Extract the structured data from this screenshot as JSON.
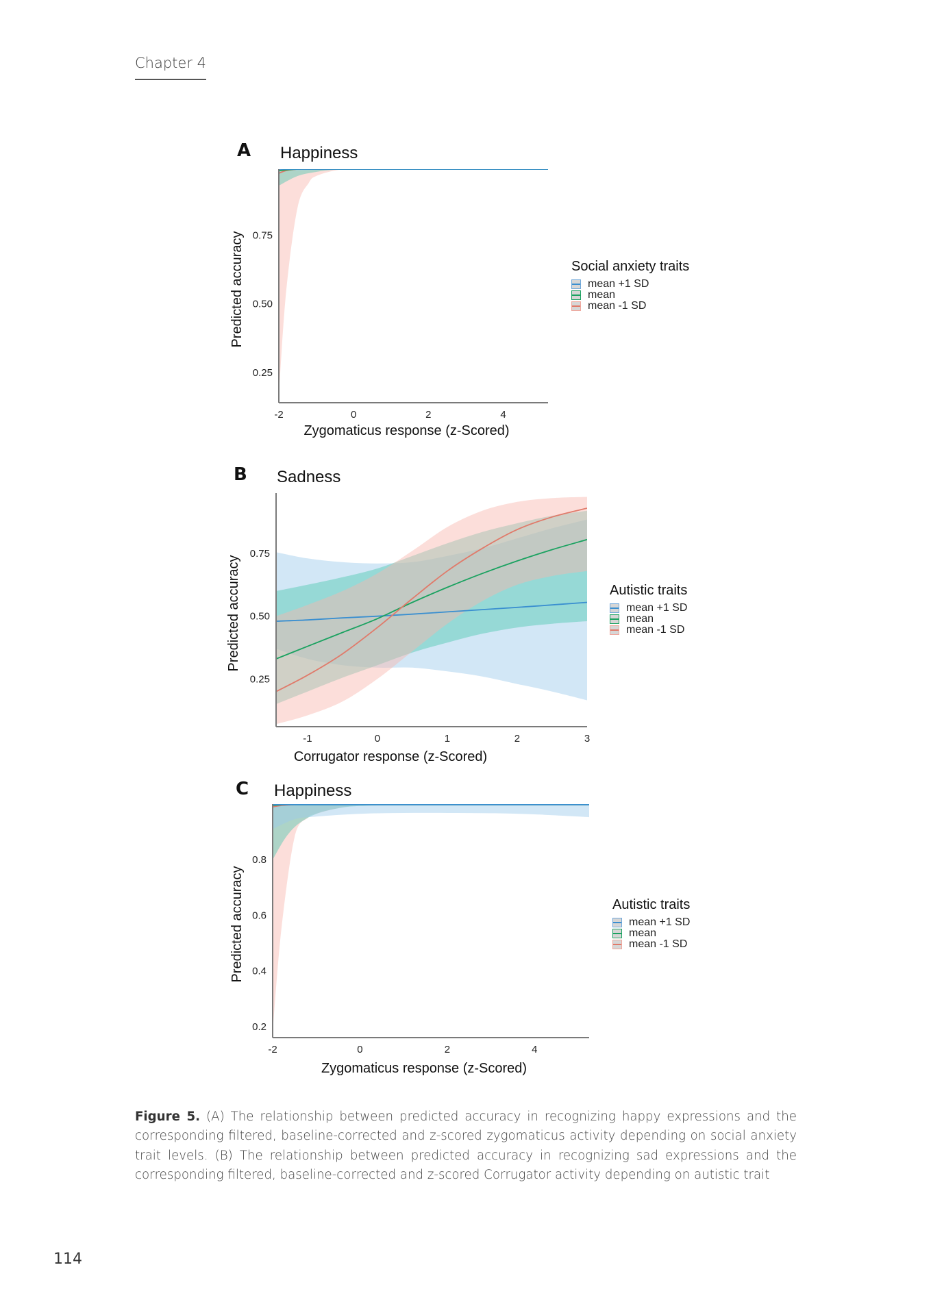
{
  "header": {
    "chapter": "Chapter 4"
  },
  "page_number": "114",
  "caption": {
    "label": "Figure 5.",
    "text": " (A) The relationship between predicted accuracy in recognizing happy expressions and the corresponding filtered, baseline-corrected and z-scored zygomaticus activity depending on social anxiety trait levels. (B) The relationship between predicted accuracy in recognizing sad expressions and the corresponding filtered, baseline-corrected and z-scored Corrugator activity depending on autistic trait"
  },
  "colors": {
    "plus1sd": "#3a8fd0",
    "mean": "#1aa260",
    "minus1sd": "#e07a6a",
    "band_plus1sd": "#9cc9ec",
    "band_mean": "#4ec7b0",
    "band_minus1sd": "#f8b5ad",
    "axis": "#7a7a7a"
  },
  "chart_data": [
    {
      "panel": "A",
      "type": "line",
      "title": "Happiness",
      "xlabel": "Zygomaticus response (z-Scored)",
      "ylabel": "Predicted accuracy",
      "xlim": [
        -2,
        5.2
      ],
      "ylim": [
        0.14,
        0.99
      ],
      "xticks": [
        -2,
        0,
        2,
        4
      ],
      "xtick_labels": [
        "-2",
        "0",
        "2",
        "4"
      ],
      "yticks": [
        0.25,
        0.5,
        0.75
      ],
      "ytick_labels": [
        "0.25",
        "0.50",
        "0.75"
      ],
      "legend": {
        "title": "Social anxiety traits",
        "entries": [
          "mean +1 SD",
          "mean",
          "mean -1 SD"
        ],
        "placement": "right"
      },
      "series": [
        {
          "name": "mean -1 SD",
          "key": "minus1sd",
          "x": [
            -2,
            -1.8,
            -1.5,
            -1.2,
            -1,
            -0.5,
            0,
            1,
            2,
            3,
            4,
            5.2
          ],
          "y": [
            0.975,
            0.985,
            0.99,
            0.99,
            0.99,
            0.99,
            0.99,
            0.99,
            0.99,
            0.99,
            0.99,
            0.99
          ],
          "lower": [
            0.17,
            0.55,
            0.85,
            0.94,
            0.965,
            0.985,
            0.99,
            0.99,
            0.99,
            0.99,
            0.99,
            0.99
          ],
          "upper": [
            0.99,
            0.99,
            0.99,
            0.99,
            0.99,
            0.99,
            0.99,
            0.99,
            0.99,
            0.99,
            0.99,
            0.99
          ]
        },
        {
          "name": "mean",
          "key": "mean",
          "x": [
            -2,
            -1.5,
            -1,
            -0.5,
            0,
            1,
            2,
            3,
            4,
            5.2
          ],
          "y": [
            0.985,
            0.99,
            0.99,
            0.99,
            0.99,
            0.99,
            0.99,
            0.99,
            0.99,
            0.99
          ],
          "lower": [
            0.93,
            0.965,
            0.98,
            0.988,
            0.99,
            0.99,
            0.99,
            0.99,
            0.99,
            0.99
          ],
          "upper": [
            0.99,
            0.99,
            0.99,
            0.99,
            0.99,
            0.99,
            0.99,
            0.99,
            0.99,
            0.99
          ]
        },
        {
          "name": "mean +1 SD",
          "key": "plus1sd",
          "x": [
            -2,
            0,
            2,
            4,
            5.2
          ],
          "y": [
            0.99,
            0.99,
            0.99,
            0.99,
            0.99
          ],
          "lower": [
            0.985,
            0.988,
            0.988,
            0.988,
            0.988
          ],
          "upper": [
            0.99,
            0.99,
            0.99,
            0.99,
            0.99
          ]
        }
      ]
    },
    {
      "panel": "B",
      "type": "line",
      "title": "Sadness",
      "xlabel": "Corrugator response (z-Scored)",
      "ylabel": "Predicted accuracy",
      "xlim": [
        -1.45,
        3
      ],
      "ylim": [
        0.06,
        0.99
      ],
      "xticks": [
        -1,
        0,
        1,
        2,
        3
      ],
      "xtick_labels": [
        "-1",
        "0",
        "1",
        "2",
        "3"
      ],
      "yticks": [
        0.25,
        0.5,
        0.75
      ],
      "ytick_labels": [
        "0.25",
        "0.50",
        "0.75"
      ],
      "legend": {
        "title": "Autistic traits",
        "entries": [
          "mean +1 SD",
          "mean",
          "mean -1 SD"
        ],
        "placement": "right"
      },
      "series": [
        {
          "name": "mean +1 SD",
          "key": "plus1sd",
          "x": [
            -1.45,
            -1,
            -0.5,
            0,
            0.5,
            1,
            1.5,
            2,
            2.5,
            3
          ],
          "y": [
            0.48,
            0.485,
            0.493,
            0.5,
            0.508,
            0.517,
            0.526,
            0.535,
            0.545,
            0.555
          ],
          "lower": [
            0.37,
            0.33,
            0.305,
            0.295,
            0.295,
            0.28,
            0.26,
            0.23,
            0.2,
            0.165
          ],
          "upper": [
            0.755,
            0.73,
            0.715,
            0.71,
            0.715,
            0.74,
            0.77,
            0.81,
            0.85,
            0.885
          ]
        },
        {
          "name": "mean",
          "key": "mean",
          "x": [
            -1.45,
            -1,
            -0.5,
            0,
            0.5,
            1,
            1.5,
            2,
            2.5,
            3
          ],
          "y": [
            0.33,
            0.38,
            0.435,
            0.49,
            0.555,
            0.615,
            0.67,
            0.72,
            0.765,
            0.805
          ],
          "lower": [
            0.15,
            0.2,
            0.255,
            0.305,
            0.355,
            0.395,
            0.43,
            0.455,
            0.47,
            0.48
          ],
          "upper": [
            0.6,
            0.625,
            0.655,
            0.69,
            0.74,
            0.79,
            0.835,
            0.87,
            0.9,
            0.92
          ]
        },
        {
          "name": "mean -1 SD",
          "key": "minus1sd",
          "x": [
            -1.45,
            -1,
            -0.5,
            0,
            0.5,
            1,
            1.5,
            2,
            2.5,
            3
          ],
          "y": [
            0.2,
            0.265,
            0.35,
            0.455,
            0.57,
            0.68,
            0.77,
            0.845,
            0.895,
            0.93
          ],
          "lower": [
            0.07,
            0.105,
            0.16,
            0.25,
            0.36,
            0.47,
            0.56,
            0.625,
            0.66,
            0.68
          ],
          "upper": [
            0.5,
            0.545,
            0.6,
            0.67,
            0.76,
            0.855,
            0.92,
            0.955,
            0.97,
            0.975
          ]
        }
      ]
    },
    {
      "panel": "C",
      "type": "line",
      "title": "Happiness",
      "xlabel": "Zygomaticus response (z-Scored)",
      "ylabel": "Predicted accuracy",
      "xlim": [
        -2,
        5.25
      ],
      "ylim": [
        0.16,
        1.0
      ],
      "xticks": [
        -2,
        0,
        2,
        4
      ],
      "xtick_labels": [
        "-2",
        "0",
        "2",
        "4"
      ],
      "yticks": [
        0.2,
        0.4,
        0.6,
        0.8
      ],
      "ytick_labels": [
        "0.2",
        "0.4",
        "0.6",
        "0.8"
      ],
      "legend": {
        "title": "Autistic traits",
        "entries": [
          "mean +1 SD",
          "mean",
          "mean -1 SD"
        ],
        "placement": "right"
      },
      "series": [
        {
          "name": "mean -1 SD",
          "key": "minus1sd",
          "x": [
            -2,
            -1.8,
            -1.5,
            -1.2,
            -1,
            -0.5,
            0,
            1,
            2,
            3,
            4,
            5.25
          ],
          "y": [
            0.99,
            0.995,
            0.998,
            0.998,
            0.998,
            0.998,
            0.998,
            0.998,
            0.998,
            0.998,
            0.998,
            0.998
          ],
          "lower": [
            0.18,
            0.55,
            0.88,
            0.95,
            0.965,
            0.985,
            0.995,
            0.997,
            0.997,
            0.997,
            0.997,
            0.997
          ],
          "upper": [
            0.998,
            0.998,
            0.998,
            0.998,
            0.998,
            0.998,
            0.998,
            0.998,
            0.998,
            0.998,
            0.998,
            0.998
          ]
        },
        {
          "name": "mean",
          "key": "mean",
          "x": [
            -2,
            -1.7,
            -1.4,
            -1,
            -0.5,
            0,
            1,
            2,
            3,
            4,
            5.25
          ],
          "y": [
            0.995,
            0.998,
            0.998,
            0.998,
            0.998,
            0.998,
            0.998,
            0.998,
            0.998,
            0.998,
            0.998
          ],
          "lower": [
            0.8,
            0.88,
            0.93,
            0.965,
            0.985,
            0.993,
            0.997,
            0.997,
            0.997,
            0.997,
            0.997
          ],
          "upper": [
            0.998,
            0.998,
            0.998,
            0.998,
            0.998,
            0.998,
            0.998,
            0.998,
            0.998,
            0.998,
            0.998
          ]
        },
        {
          "name": "mean +1 SD",
          "key": "plus1sd",
          "x": [
            -2,
            -1.5,
            -1,
            0,
            1,
            2,
            3,
            4,
            5.25
          ],
          "y": [
            0.998,
            0.998,
            0.998,
            0.998,
            0.998,
            0.998,
            0.998,
            0.998,
            0.998
          ],
          "lower": [
            0.91,
            0.945,
            0.955,
            0.965,
            0.968,
            0.968,
            0.967,
            0.963,
            0.953
          ],
          "upper": [
            0.998,
            0.998,
            0.998,
            0.998,
            0.998,
            0.998,
            0.998,
            0.998,
            0.998
          ]
        }
      ]
    }
  ]
}
